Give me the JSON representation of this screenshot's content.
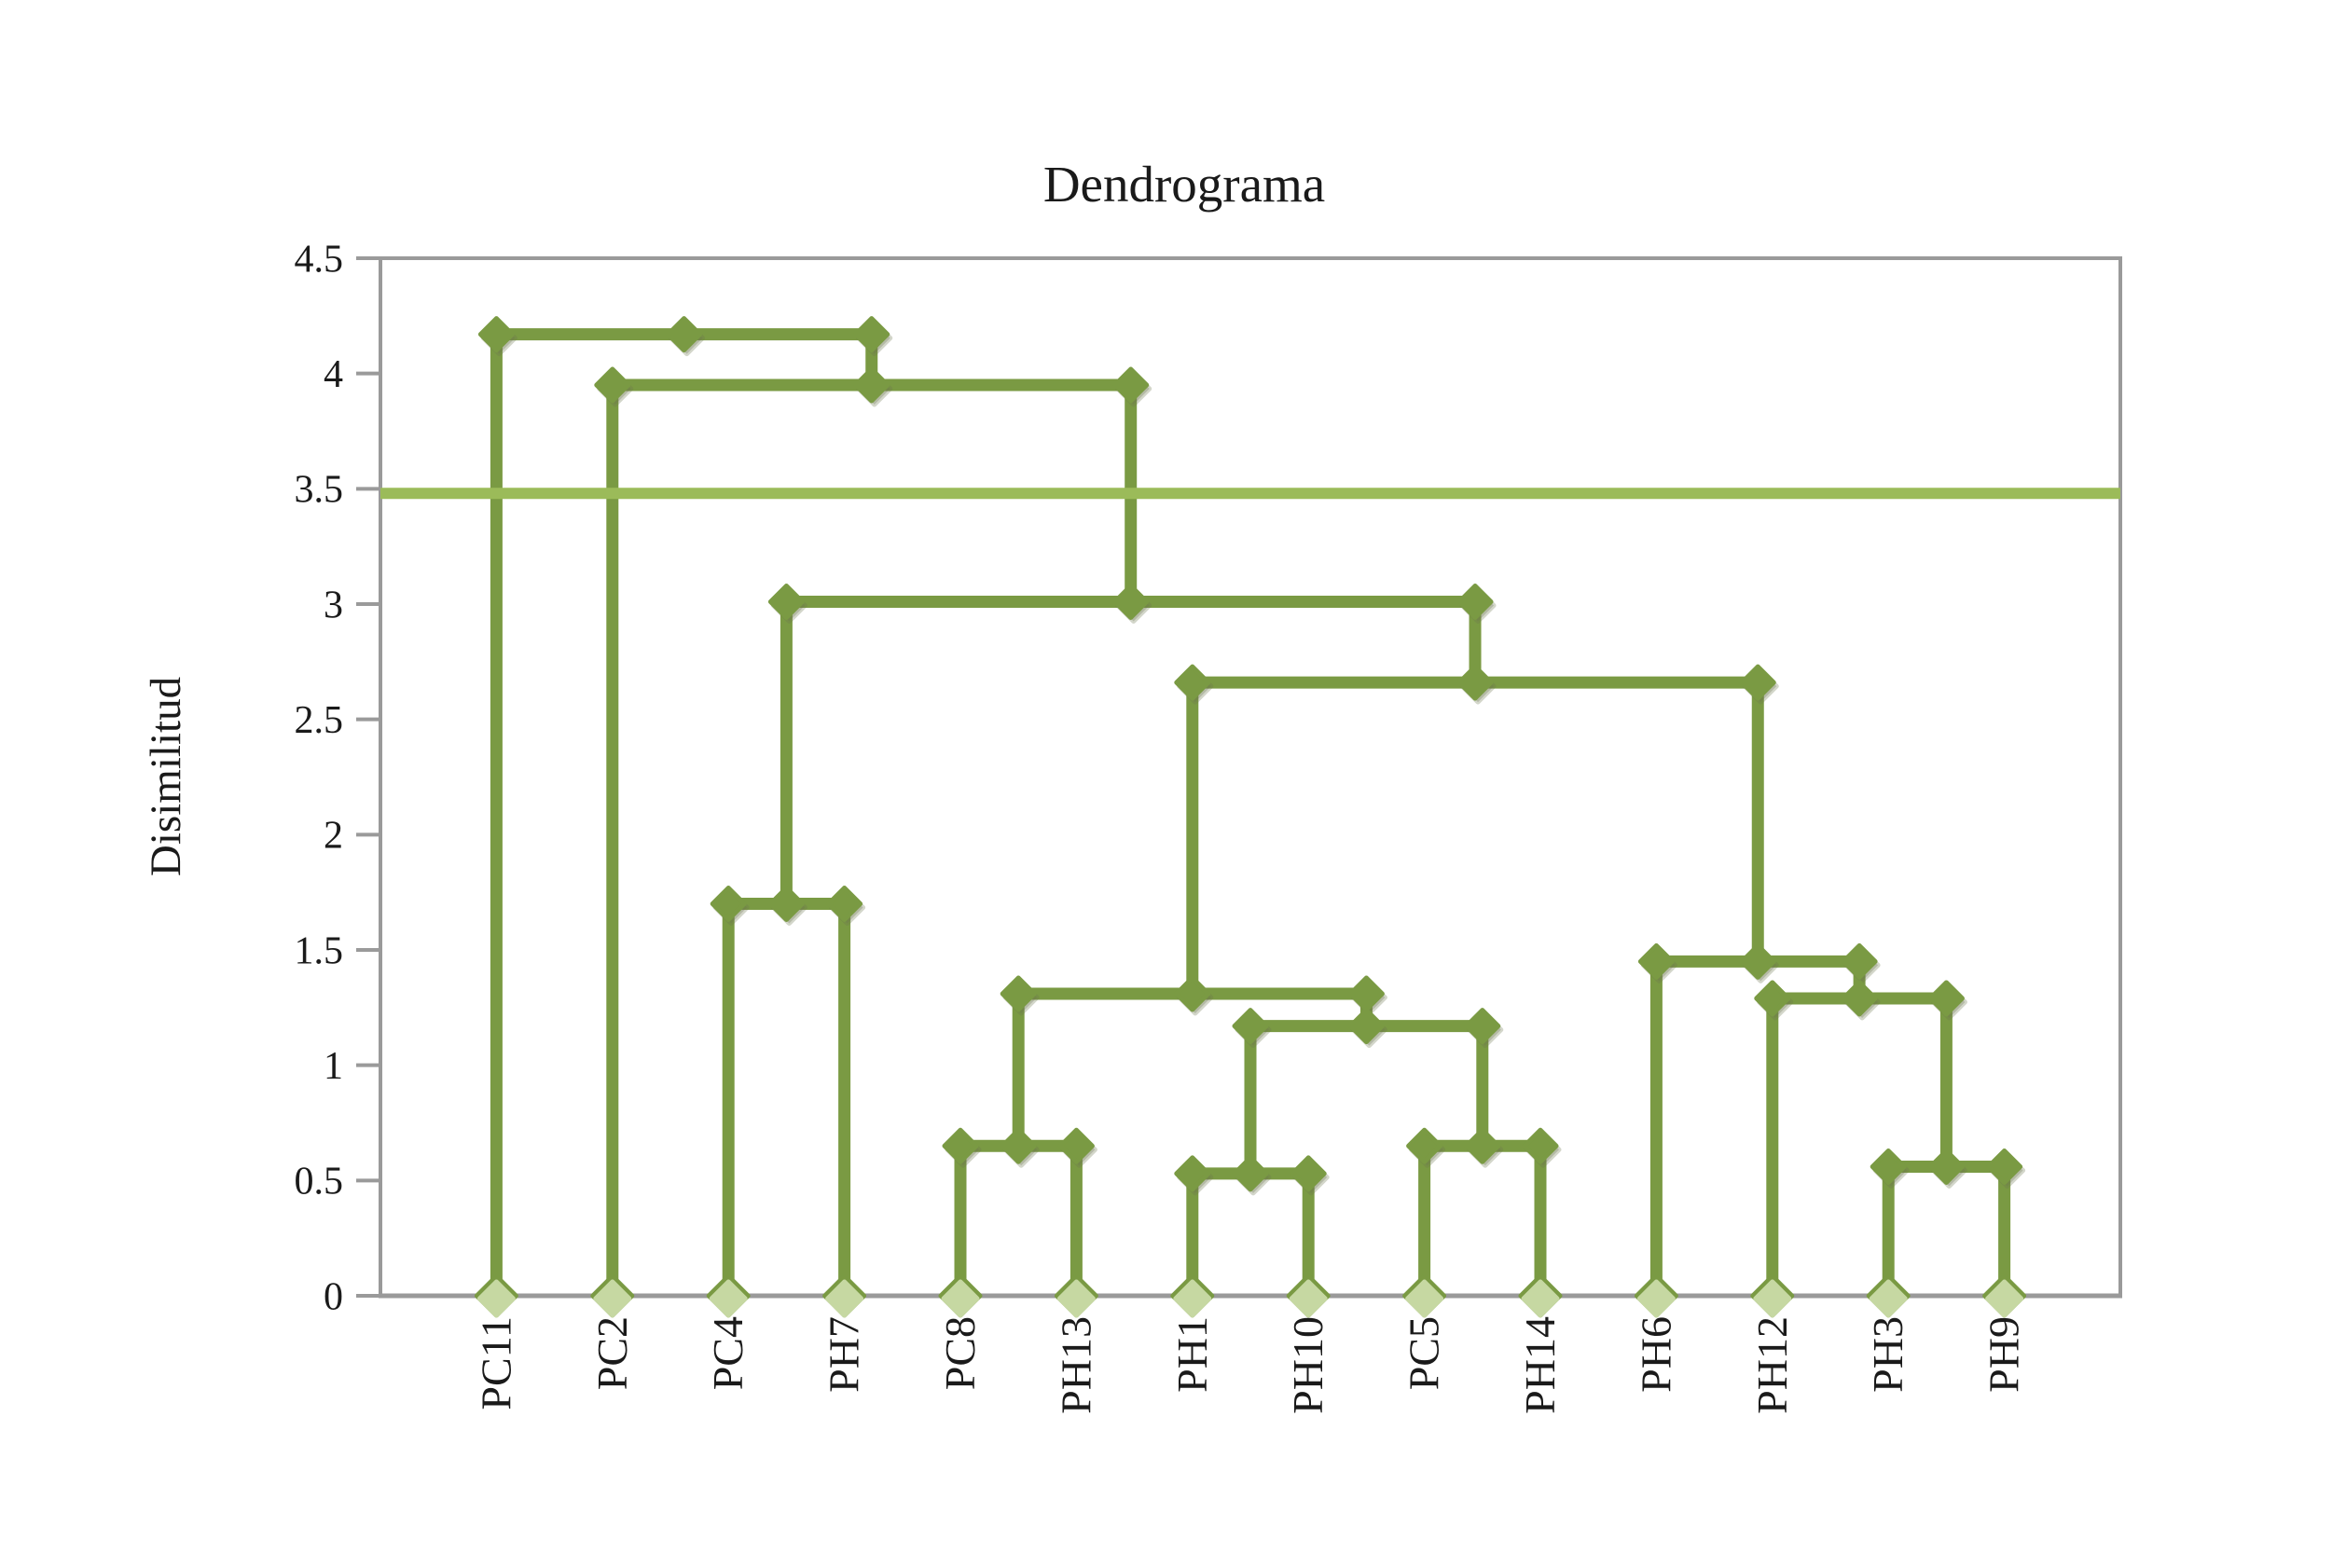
{
  "title": "Dendrograma",
  "y_axis": {
    "label": "Disimilitud",
    "tick_labels": [
      "4.5",
      "4",
      "3.5",
      "3",
      "2.5",
      "2",
      "1.5",
      "1",
      "0.5",
      "0"
    ],
    "min": 0,
    "max": 4.5,
    "step": 0.5
  },
  "x_axis": {
    "leaf_labels": [
      "PC11",
      "PC2",
      "PC4",
      "PH7",
      "PC8",
      "PH13",
      "PH1",
      "PH10",
      "PC5",
      "PH14",
      "PH6",
      "PH12",
      "PH3",
      "PH9"
    ]
  },
  "cut_line": {
    "value": 3.48,
    "color": "#9BBB59"
  },
  "colors": {
    "tree": "#7A9A43",
    "leaf_marker_fill": "#C6D8A2",
    "axis": "#9A9A9A",
    "text": "#1A1A1A",
    "background": "#FFFFFF"
  },
  "chart_data": {
    "type": "dendrogram",
    "title": "Dendrograma",
    "ylabel": "Disimilitud",
    "xlabel": "",
    "ylim": [
      0,
      4.5
    ],
    "grid": false,
    "legend": false,
    "leaves": [
      "PC11",
      "PC2",
      "PC4",
      "PH7",
      "PC8",
      "PH13",
      "PH1",
      "PH10",
      "PC5",
      "PH14",
      "PH6",
      "PH12",
      "PH3",
      "PH9"
    ],
    "merges": [
      {
        "id": "C1",
        "children": [
          "PC4",
          "PH7"
        ],
        "height": 1.7
      },
      {
        "id": "C2",
        "children": [
          "PC8",
          "PH13"
        ],
        "height": 0.65
      },
      {
        "id": "C3",
        "children": [
          "PH1",
          "PH10"
        ],
        "height": 0.53
      },
      {
        "id": "C4",
        "children": [
          "PC5",
          "PH14"
        ],
        "height": 0.65
      },
      {
        "id": "C5",
        "children": [
          "PH3",
          "PH9"
        ],
        "height": 0.56
      },
      {
        "id": "C6",
        "children": [
          "C3",
          "C4"
        ],
        "height": 1.17
      },
      {
        "id": "C7",
        "children": [
          "C2",
          "C6"
        ],
        "height": 1.31
      },
      {
        "id": "C8",
        "children": [
          "PH12",
          "C5"
        ],
        "height": 1.29
      },
      {
        "id": "C9",
        "children": [
          "PH6",
          "C8"
        ],
        "height": 1.45
      },
      {
        "id": "C10",
        "children": [
          "C7",
          "C9"
        ],
        "height": 2.66
      },
      {
        "id": "C11",
        "children": [
          "C1",
          "C10"
        ],
        "height": 3.01
      },
      {
        "id": "C12",
        "children": [
          "PC2",
          "C11"
        ],
        "height": 3.95
      },
      {
        "id": "C13",
        "children": [
          "PC11",
          "C12"
        ],
        "height": 4.17
      }
    ],
    "cut_line_value": 3.48
  }
}
